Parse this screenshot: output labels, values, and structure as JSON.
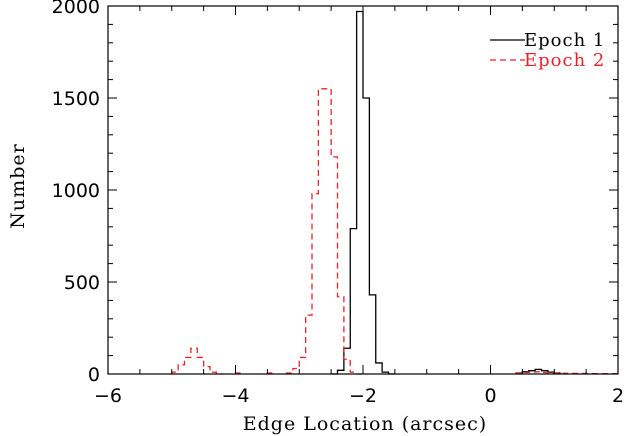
{
  "chart_data": {
    "type": "histogram",
    "title": "",
    "xlabel": "Edge Location (arcsec)",
    "ylabel": "Number",
    "xlim": [
      -6,
      2
    ],
    "ylim": [
      0,
      2000
    ],
    "xticks": [
      -6,
      -4,
      -2,
      0,
      2
    ],
    "xtick_labels": [
      "−6",
      "−4",
      "−2",
      "0",
      "2"
    ],
    "yticks": [
      0,
      500,
      1000,
      1500,
      2000
    ],
    "ytick_labels": [
      "0",
      "500",
      "1000",
      "1500",
      "2000"
    ],
    "grid": false,
    "legend_position": "top-right",
    "bin_width": 0.1,
    "series": [
      {
        "name": "Epoch 1",
        "color": "#000000",
        "style": "solid",
        "bins": [
          [
            -2.5,
            0
          ],
          [
            -2.4,
            20
          ],
          [
            -2.3,
            140
          ],
          [
            -2.2,
            790
          ],
          [
            -2.1,
            1970
          ],
          [
            -2.0,
            1500
          ],
          [
            -1.9,
            430
          ],
          [
            -1.8,
            60
          ],
          [
            -1.7,
            10
          ],
          [
            -1.6,
            0
          ],
          [
            0.4,
            5
          ],
          [
            0.5,
            12
          ],
          [
            0.6,
            18
          ],
          [
            0.7,
            25
          ],
          [
            0.8,
            18
          ],
          [
            0.9,
            10
          ],
          [
            1.0,
            5
          ]
        ]
      },
      {
        "name": "Epoch 2",
        "color": "#e8222b",
        "style": "dashed",
        "bins": [
          [
            -5.0,
            10
          ],
          [
            -4.9,
            50
          ],
          [
            -4.8,
            90
          ],
          [
            -4.7,
            140
          ],
          [
            -4.6,
            90
          ],
          [
            -4.5,
            40
          ],
          [
            -4.4,
            10
          ],
          [
            -4.3,
            0
          ],
          [
            -4.0,
            5
          ],
          [
            -3.5,
            5
          ],
          [
            -3.2,
            5
          ],
          [
            -3.1,
            30
          ],
          [
            -3.0,
            90
          ],
          [
            -2.9,
            320
          ],
          [
            -2.8,
            980
          ],
          [
            -2.7,
            1550
          ],
          [
            -2.6,
            1550
          ],
          [
            -2.5,
            1180
          ],
          [
            -2.4,
            420
          ],
          [
            -2.3,
            80
          ],
          [
            -2.2,
            10
          ],
          [
            -2.1,
            0
          ],
          [
            0.4,
            5
          ],
          [
            0.5,
            8
          ],
          [
            0.6,
            10
          ],
          [
            0.7,
            12
          ],
          [
            0.8,
            8
          ],
          [
            0.9,
            6
          ],
          [
            1.0,
            5
          ],
          [
            1.1,
            4
          ],
          [
            1.2,
            4
          ],
          [
            1.3,
            3
          ],
          [
            1.4,
            3
          ],
          [
            1.5,
            2
          ],
          [
            1.6,
            2
          ],
          [
            1.7,
            2
          ],
          [
            1.8,
            2
          ],
          [
            1.9,
            2
          ]
        ]
      }
    ]
  }
}
